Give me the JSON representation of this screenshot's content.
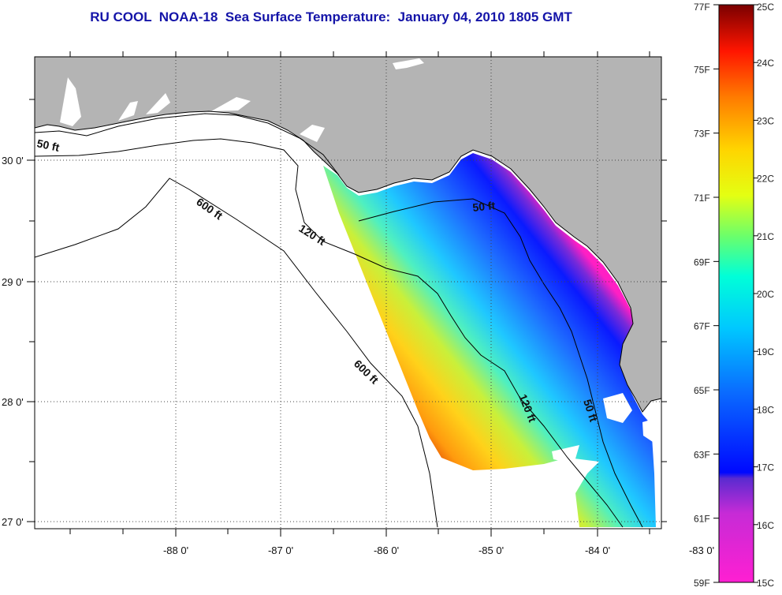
{
  "title": "RU COOL  NOAA-18  Sea Surface Temperature:  January 04, 2010 1805 GMT",
  "map": {
    "lat_labels": [
      "30 0'",
      "29 0'",
      "28 0'",
      "27 0'"
    ],
    "lon_labels": [
      "-88 0'",
      "-87 0'",
      "-86 0'",
      "-85 0'",
      "-84 0'",
      "-83 0'"
    ],
    "contour_labels": {
      "c50_nw": "50 ft",
      "c600_nw": "600 ft",
      "c120_nw": "120 ft",
      "c50_big_bend": "50 ft",
      "c600_sw": "600 ft",
      "c120_se": "120 ft",
      "c50_se": "50 ft"
    },
    "colors": {
      "land": "#b4b4b4",
      "water": "#ffffff",
      "cold": "#ff1fc4",
      "warm": "#dd3500"
    }
  },
  "colorbar": {
    "f_labels": [
      "77F",
      "75F",
      "73F",
      "71F",
      "69F",
      "67F",
      "65F",
      "63F",
      "61F",
      "59F"
    ],
    "c_labels": [
      "25C",
      "24C",
      "23C",
      "22C",
      "21C",
      "20C",
      "19C",
      "18C",
      "17C",
      "16C",
      "15C"
    ]
  }
}
